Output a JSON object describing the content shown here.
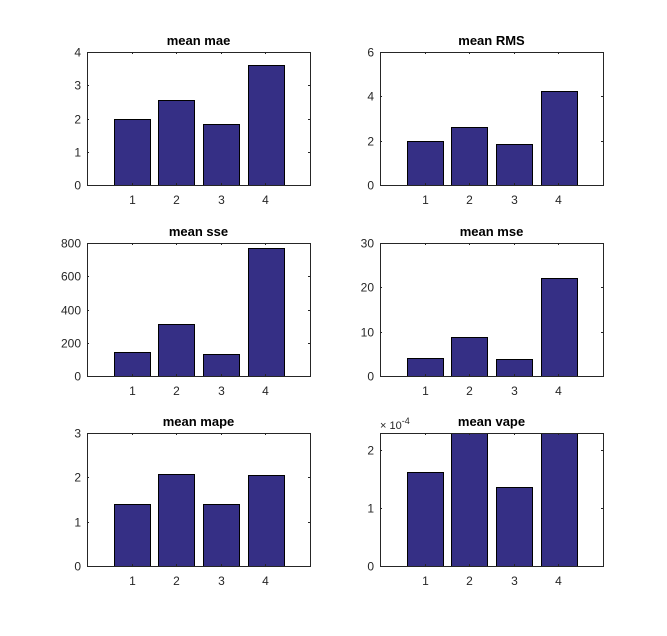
{
  "chart_data": [
    {
      "type": "bar",
      "title": "mean mae",
      "categories": [
        "1",
        "2",
        "3",
        "4"
      ],
      "values": [
        1.98,
        2.55,
        1.82,
        3.62
      ],
      "ylim": [
        0,
        4
      ],
      "yticks": [
        0,
        1,
        2,
        3,
        4
      ],
      "ytick_labels": [
        "0",
        "1",
        "2",
        "3",
        "4"
      ],
      "grid": false
    },
    {
      "type": "bar",
      "title": "mean RMS",
      "categories": [
        "1",
        "2",
        "3",
        "4"
      ],
      "values": [
        1.98,
        2.6,
        1.85,
        4.22
      ],
      "ylim": [
        0,
        6
      ],
      "yticks": [
        0,
        2,
        4,
        6
      ],
      "ytick_labels": [
        "0",
        "2",
        "4",
        "6"
      ],
      "grid": false
    },
    {
      "type": "bar",
      "title": "mean sse",
      "categories": [
        "1",
        "2",
        "3",
        "4"
      ],
      "values": [
        145,
        313,
        130,
        772
      ],
      "ylim": [
        0,
        800
      ],
      "yticks": [
        0,
        200,
        400,
        600,
        800
      ],
      "ytick_labels": [
        "0",
        "200",
        "400",
        "600",
        "800"
      ],
      "grid": false
    },
    {
      "type": "bar",
      "title": "mean mse",
      "categories": [
        "1",
        "2",
        "3",
        "4"
      ],
      "values": [
        4,
        8.8,
        3.8,
        22
      ],
      "ylim": [
        0,
        30
      ],
      "yticks": [
        0,
        10,
        20,
        30
      ],
      "ytick_labels": [
        "0",
        "10",
        "20",
        "30"
      ],
      "grid": false
    },
    {
      "type": "bar",
      "title": "mean mape",
      "categories": [
        "1",
        "2",
        "3",
        "4"
      ],
      "values": [
        1.4,
        2.08,
        1.4,
        2.05
      ],
      "ylim": [
        0,
        3
      ],
      "yticks": [
        0,
        1,
        2,
        3
      ],
      "ytick_labels": [
        "0",
        "1",
        "2",
        "3"
      ],
      "grid": false
    },
    {
      "type": "bar",
      "title": "mean vape",
      "categories": [
        "1",
        "2",
        "3",
        "4"
      ],
      "values": [
        0.000163,
        0.00023,
        0.000136,
        0.00023
      ],
      "ylim": [
        0,
        0.00023
      ],
      "yticks": [
        0,
        0.0001,
        0.0002
      ],
      "ytick_labels": [
        "0",
        "1",
        "2"
      ],
      "y_exponent_label": "× 10",
      "y_exponent_power": "-4",
      "grid": false
    }
  ],
  "colors": {
    "bar_fill": "#352f85",
    "bar_edge": "#000000",
    "axis": "#262626",
    "background": "#ffffff"
  }
}
